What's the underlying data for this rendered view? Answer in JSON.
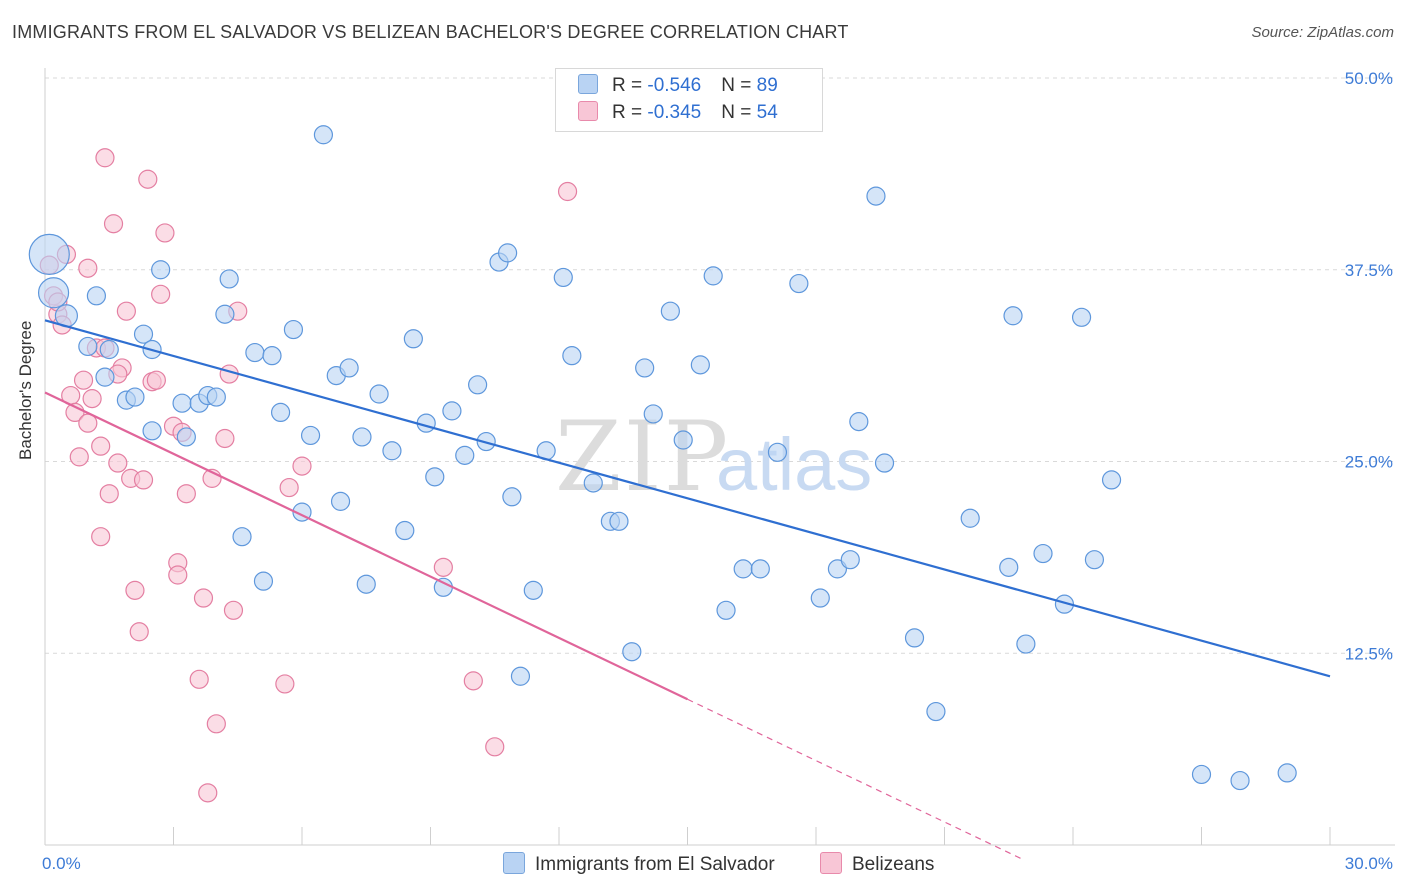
{
  "title": "IMMIGRANTS FROM EL SALVADOR VS BELIZEAN BACHELOR'S DEGREE CORRELATION CHART",
  "source": "Source: ZipAtlas.com",
  "watermark": {
    "zip": "ZIP",
    "atlas": "atlas"
  },
  "legend_top": {
    "series1": {
      "r_label": "R = ",
      "r_value": "-0.546",
      "n_label": "N = ",
      "n_value": "89"
    },
    "series2": {
      "r_label": "R = ",
      "r_value": "-0.345",
      "n_label": "N = ",
      "n_value": "54"
    }
  },
  "legend_bottom": {
    "series1": "Immigrants from El Salvador",
    "series2": "Belizeans"
  },
  "colors": {
    "blue_fill": "#b9d3f3",
    "blue_stroke": "#5e97dc",
    "blue_line": "#2f6fd1",
    "pink_fill": "#f8c6d6",
    "pink_stroke": "#e47fa2",
    "pink_line": "#e0659a",
    "tick_label": "#3d7bd6"
  },
  "chart_data": {
    "type": "scatter",
    "title": "IMMIGRANTS FROM EL SALVADOR VS BELIZEAN BACHELOR'S DEGREE CORRELATION CHART",
    "xlabel": "",
    "ylabel": "Bachelor's Degree",
    "xlim": [
      0,
      30
    ],
    "ylim": [
      0,
      50
    ],
    "x_ticks": [
      0,
      3,
      6,
      9,
      12,
      15,
      18,
      21,
      24,
      27,
      30
    ],
    "x_tick_labels": {
      "0": "0.0%",
      "30": "30.0%"
    },
    "y_ticks": [
      12.5,
      25.0,
      37.5,
      50.0
    ],
    "y_tick_labels": [
      "12.5%",
      "25.0%",
      "37.5%",
      "50.0%"
    ],
    "grid": true,
    "series": [
      {
        "name": "Immigrants from El Salvador",
        "color": "blue",
        "trend": {
          "x": [
            0,
            30
          ],
          "y": [
            34.2,
            11.0
          ]
        },
        "points": [
          [
            0.1,
            38.5,
            20
          ],
          [
            0.2,
            36.0,
            15
          ],
          [
            0.5,
            34.5,
            11
          ],
          [
            1.0,
            32.5,
            9
          ],
          [
            1.2,
            35.8,
            9
          ],
          [
            1.4,
            30.5,
            9
          ],
          [
            1.5,
            32.3,
            9
          ],
          [
            1.9,
            29.0,
            9
          ],
          [
            2.1,
            29.2,
            9
          ],
          [
            2.3,
            33.3,
            9
          ],
          [
            2.5,
            32.3,
            9
          ],
          [
            2.5,
            27.0,
            9
          ],
          [
            2.7,
            37.5,
            9
          ],
          [
            3.2,
            28.8,
            9
          ],
          [
            3.3,
            26.6,
            9
          ],
          [
            3.6,
            28.8,
            9
          ],
          [
            3.8,
            29.3,
            9
          ],
          [
            4.0,
            29.2,
            9
          ],
          [
            4.2,
            34.6,
            9
          ],
          [
            4.3,
            36.9,
            9
          ],
          [
            4.6,
            20.1,
            9
          ],
          [
            4.9,
            32.1,
            9
          ],
          [
            5.1,
            17.2,
            9
          ],
          [
            5.3,
            31.9,
            9
          ],
          [
            5.5,
            28.2,
            9
          ],
          [
            5.8,
            33.6,
            9
          ],
          [
            6.0,
            21.7,
            9
          ],
          [
            6.2,
            26.7,
            9
          ],
          [
            6.5,
            46.3,
            9
          ],
          [
            6.8,
            30.6,
            9
          ],
          [
            6.9,
            22.4,
            9
          ],
          [
            7.1,
            31.1,
            9
          ],
          [
            7.4,
            26.6,
            9
          ],
          [
            7.5,
            17.0,
            9
          ],
          [
            7.8,
            29.4,
            9
          ],
          [
            8.1,
            25.7,
            9
          ],
          [
            8.4,
            20.5,
            9
          ],
          [
            8.6,
            33.0,
            9
          ],
          [
            8.9,
            27.5,
            9
          ],
          [
            9.1,
            24.0,
            9
          ],
          [
            9.3,
            16.8,
            9
          ],
          [
            9.5,
            28.3,
            9
          ],
          [
            9.8,
            25.4,
            9
          ],
          [
            10.1,
            30.0,
            9
          ],
          [
            10.3,
            26.3,
            9
          ],
          [
            10.6,
            38.0,
            9
          ],
          [
            10.8,
            38.6,
            9
          ],
          [
            10.9,
            22.7,
            9
          ],
          [
            11.1,
            11.0,
            9
          ],
          [
            11.4,
            16.6,
            9
          ],
          [
            11.7,
            25.7,
            9
          ],
          [
            12.1,
            37.0,
            9
          ],
          [
            12.3,
            31.9,
            9
          ],
          [
            12.7,
            48.5,
            9
          ],
          [
            12.8,
            23.6,
            9
          ],
          [
            13.2,
            21.1,
            9
          ],
          [
            13.4,
            21.1,
            9
          ],
          [
            13.7,
            12.6,
            9
          ],
          [
            14.0,
            31.1,
            9
          ],
          [
            14.2,
            28.1,
            9
          ],
          [
            14.6,
            34.8,
            9
          ],
          [
            14.9,
            26.4,
            9
          ],
          [
            15.3,
            31.3,
            9
          ],
          [
            15.6,
            37.1,
            9
          ],
          [
            15.9,
            15.3,
            9
          ],
          [
            16.3,
            18.0,
            9
          ],
          [
            16.7,
            18.0,
            9
          ],
          [
            17.1,
            25.6,
            9
          ],
          [
            17.6,
            36.6,
            9
          ],
          [
            18.1,
            16.1,
            9
          ],
          [
            18.5,
            18.0,
            9
          ],
          [
            18.8,
            18.6,
            9
          ],
          [
            19.0,
            27.6,
            9
          ],
          [
            19.4,
            42.3,
            9
          ],
          [
            19.6,
            24.9,
            9
          ],
          [
            20.3,
            13.5,
            9
          ],
          [
            20.8,
            8.7,
            9
          ],
          [
            21.6,
            21.3,
            9
          ],
          [
            22.5,
            18.1,
            9
          ],
          [
            22.6,
            34.5,
            9
          ],
          [
            22.9,
            13.1,
            9
          ],
          [
            23.3,
            19.0,
            9
          ],
          [
            23.8,
            15.7,
            9
          ],
          [
            24.5,
            18.6,
            9
          ],
          [
            24.9,
            23.8,
            9
          ],
          [
            24.2,
            34.4,
            9
          ],
          [
            27.0,
            4.6,
            9
          ],
          [
            27.9,
            4.2,
            9
          ],
          [
            29.0,
            4.7,
            9
          ]
        ]
      },
      {
        "name": "Belizeans",
        "color": "pink",
        "trend": {
          "x": [
            0,
            15
          ],
          "y": [
            29.5,
            9.5
          ]
        },
        "trend_dashed": {
          "x": [
            15,
            22.8
          ],
          "y": [
            9.5,
            -0.9
          ]
        },
        "points": [
          [
            0.1,
            37.8,
            9
          ],
          [
            0.2,
            35.8,
            9
          ],
          [
            0.3,
            34.6,
            9
          ],
          [
            0.4,
            33.9,
            9
          ],
          [
            0.5,
            38.5,
            9
          ],
          [
            0.6,
            29.3,
            9
          ],
          [
            0.7,
            28.2,
            9
          ],
          [
            0.8,
            25.3,
            9
          ],
          [
            0.9,
            30.3,
            9
          ],
          [
            1.0,
            27.5,
            9
          ],
          [
            1.0,
            37.6,
            9
          ],
          [
            1.1,
            29.1,
            9
          ],
          [
            1.2,
            32.4,
            9
          ],
          [
            1.3,
            26.0,
            9
          ],
          [
            1.3,
            20.1,
            9
          ],
          [
            1.4,
            44.8,
            9
          ],
          [
            1.5,
            22.9,
            9
          ],
          [
            1.6,
            40.5,
            9
          ],
          [
            1.7,
            24.9,
            9
          ],
          [
            1.8,
            31.1,
            9
          ],
          [
            1.9,
            34.8,
            9
          ],
          [
            2.0,
            23.9,
            9
          ],
          [
            2.1,
            16.6,
            9
          ],
          [
            2.2,
            13.9,
            9
          ],
          [
            2.3,
            23.8,
            9
          ],
          [
            2.4,
            43.4,
            9
          ],
          [
            2.5,
            30.2,
            9
          ],
          [
            2.6,
            30.3,
            9
          ],
          [
            2.7,
            35.9,
            9
          ],
          [
            2.8,
            39.9,
            9
          ],
          [
            3.0,
            27.3,
            9
          ],
          [
            3.1,
            18.4,
            9
          ],
          [
            3.1,
            17.6,
            9
          ],
          [
            3.2,
            26.9,
            9
          ],
          [
            3.3,
            22.9,
            9
          ],
          [
            3.6,
            10.8,
            9
          ],
          [
            3.7,
            16.1,
            9
          ],
          [
            3.8,
            3.4,
            9
          ],
          [
            3.9,
            23.9,
            9
          ],
          [
            4.0,
            7.9,
            9
          ],
          [
            4.2,
            26.5,
            9
          ],
          [
            4.3,
            30.7,
            9
          ],
          [
            4.4,
            15.3,
            9
          ],
          [
            4.5,
            34.8,
            9
          ],
          [
            5.6,
            10.5,
            9
          ],
          [
            5.7,
            23.3,
            9
          ],
          [
            6.0,
            24.7,
            9
          ],
          [
            9.3,
            18.1,
            9
          ],
          [
            10.0,
            10.7,
            9
          ],
          [
            10.5,
            6.4,
            9
          ],
          [
            12.2,
            42.6,
            9
          ],
          [
            0.3,
            35.4,
            9
          ],
          [
            1.4,
            32.4,
            9
          ],
          [
            1.7,
            30.7,
            9
          ]
        ]
      }
    ]
  }
}
